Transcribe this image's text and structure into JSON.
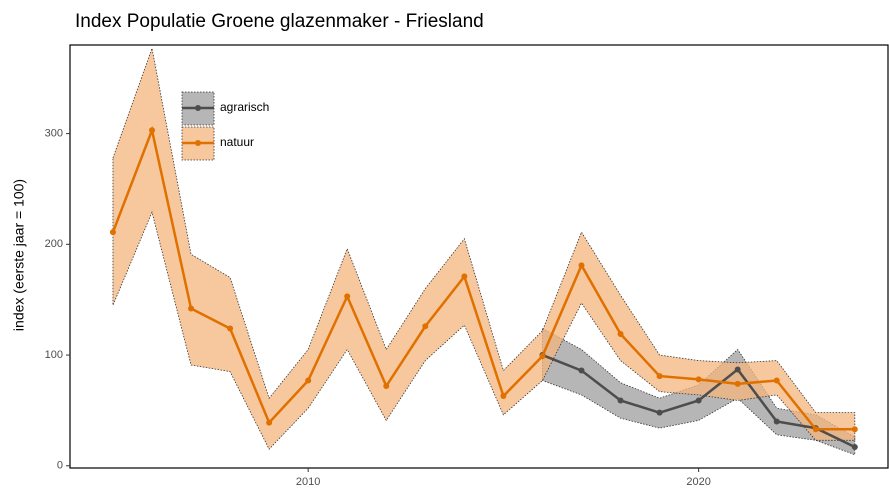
{
  "chart_data": {
    "type": "line",
    "title": "Index Populatie Groene glazenmaker - Friesland",
    "y_label": "index (eerste jaar = 100)",
    "xlim": [
      2003.9,
      2024.85
    ],
    "xticks": [
      2010,
      2020
    ],
    "ylim": [
      -2,
      380
    ],
    "yticks": [
      0,
      100,
      200,
      300
    ],
    "grid": false,
    "legend": "top-left",
    "series": [
      {
        "name": "agrarisch",
        "color": "#4d4d4d",
        "band_color": "#9e9e9e",
        "x": [
          2016,
          2017,
          2018,
          2019,
          2020,
          2021,
          2022,
          2023,
          2024
        ],
        "values": [
          100,
          86,
          59,
          48,
          59,
          87,
          40,
          34,
          17
        ],
        "lower": [
          77,
          64,
          43,
          34,
          41,
          61,
          28,
          23,
          10
        ],
        "upper": [
          124,
          105,
          75,
          61,
          73,
          105,
          52,
          46,
          26
        ]
      },
      {
        "name": "natuur",
        "color": "#e07000",
        "band_color": "#f4b57c",
        "x": [
          2005,
          2006,
          2007,
          2008,
          2009,
          2010,
          2011,
          2012,
          2013,
          2014,
          2015,
          2016,
          2017,
          2018,
          2019,
          2020,
          2021,
          2022,
          2023,
          2024
        ],
        "values": [
          211,
          303,
          142,
          124,
          39,
          77,
          153,
          72,
          126,
          171,
          63,
          99,
          181,
          119,
          81,
          78,
          74,
          77,
          33,
          33
        ],
        "lower": [
          145,
          229,
          91,
          85,
          15,
          52,
          105,
          41,
          95,
          127,
          46,
          77,
          147,
          95,
          67,
          64,
          59,
          64,
          23,
          23
        ],
        "upper": [
          278,
          377,
          191,
          170,
          61,
          105,
          196,
          105,
          160,
          205,
          86,
          122,
          211,
          154,
          100,
          95,
          93,
          95,
          48,
          48
        ]
      }
    ]
  }
}
